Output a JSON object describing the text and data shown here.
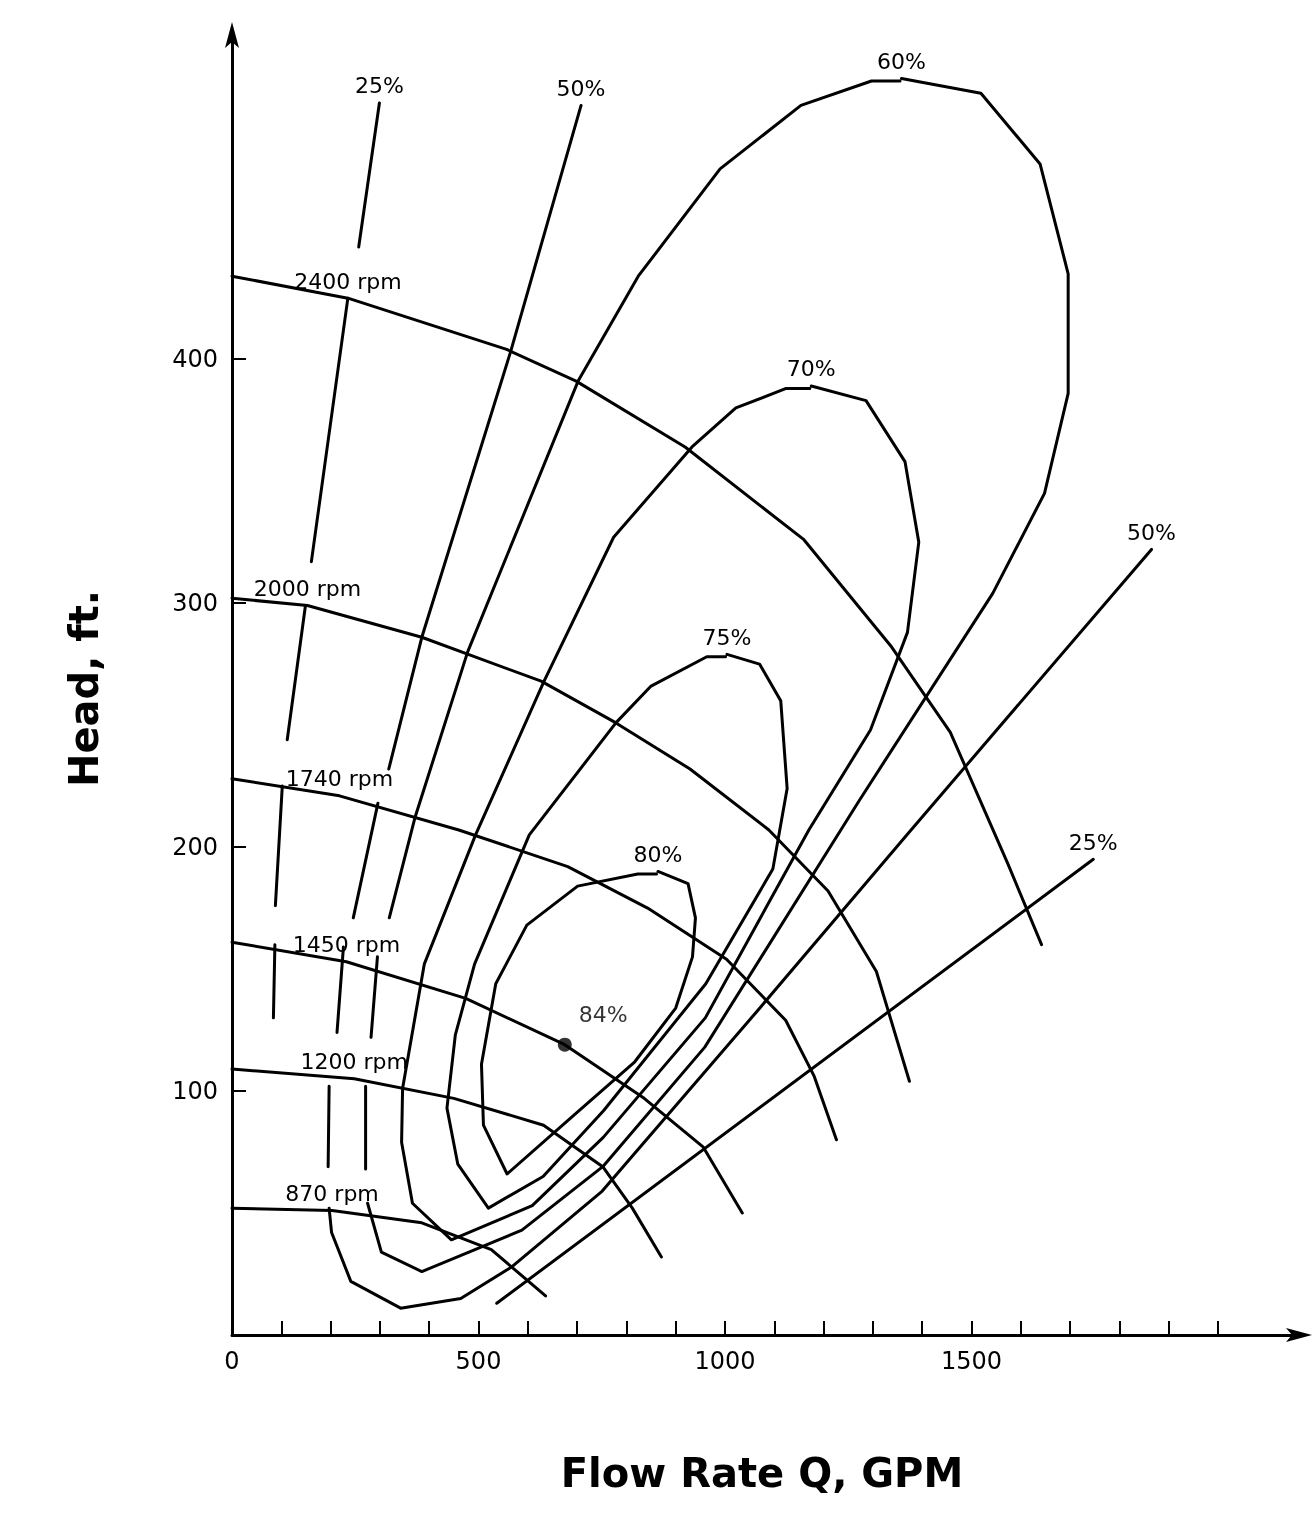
{
  "chart_data": {
    "type": "line",
    "xlabel": "Flow Rate Q, GPM",
    "ylabel": "Head, ft.",
    "xlim": [
      0,
      2150
    ],
    "ylim": [
      0,
      530
    ],
    "xticks": [
      0,
      {
        "value": 100,
        "label": null
      },
      {
        "value": 200,
        "label": null
      },
      {
        "value": 300,
        "label": null
      },
      {
        "value": 400,
        "label": null
      },
      500,
      {
        "value": 600,
        "label": null
      },
      {
        "value": 700,
        "label": null
      },
      {
        "value": 800,
        "label": null
      },
      {
        "value": 900,
        "label": null
      },
      1000,
      {
        "value": 1100,
        "label": null
      },
      {
        "value": 1200,
        "label": null
      },
      {
        "value": 1300,
        "label": null
      },
      {
        "value": 1400,
        "label": null
      },
      1500,
      {
        "value": 1600,
        "label": null
      },
      {
        "value": 1700,
        "label": null
      },
      {
        "value": 1800,
        "label": null
      },
      {
        "value": 1900,
        "label": null
      },
      {
        "value": 2000,
        "label": null
      }
    ],
    "yticks": [
      100,
      200,
      300,
      400
    ],
    "line_style": "solid",
    "series": [
      {
        "name": "2400 rpm",
        "color": "#000000",
        "x": [
          0,
          235,
          557,
          698,
          919,
          1160,
          1338,
          1457,
          1574,
          1642
        ],
        "values": [
          434,
          425,
          404,
          391,
          364,
          326,
          282,
          247,
          193,
          160
        ]
      },
      {
        "name": "2000 rpm",
        "color": "#000000",
        "x": [
          0,
          153,
          385,
          627,
          778,
          929,
          1089,
          1209,
          1307,
          1374
        ],
        "values": [
          302,
          299,
          286,
          268,
          251,
          232,
          207,
          182,
          149,
          104
        ]
      },
      {
        "name": "1740 rpm",
        "color": "#000000",
        "x": [
          0,
          218,
          460,
          681,
          843,
          1003,
          1123,
          1181,
          1226
        ],
        "values": [
          228,
          221,
          207,
          192,
          175,
          154,
          129,
          106,
          80
        ]
      },
      {
        "name": "1450 rpm",
        "color": "#000000",
        "x": [
          0,
          232,
          474,
          675,
          836,
          956,
          1035
        ],
        "values": [
          161,
          153,
          138,
          119,
          97,
          77,
          50
        ]
      },
      {
        "name": "1200 rpm",
        "color": "#000000",
        "x": [
          0,
          248,
          450,
          632,
          752,
          812,
          871
        ],
        "values": [
          109,
          105,
          97,
          86,
          69,
          52,
          32
        ]
      },
      {
        "name": "870 rpm",
        "color": "#000000",
        "x": [
          0,
          203,
          385,
          526,
          636
        ],
        "values": [
          52,
          51,
          46,
          35,
          16
        ]
      },
      {
        "name": "25%",
        "color": "#000000",
        "x": [
          1747,
          537,
          null,
          84,
          87,
          null,
          88,
          102,
          null,
          112,
          149,
          null,
          161,
          235,
          null,
          257,
          299
        ],
        "values": [
          195,
          13,
          null,
          130,
          160,
          null,
          176,
          225,
          null,
          244,
          299,
          null,
          317,
          425,
          null,
          446,
          505
        ]
      },
      {
        "name": "50%",
        "color": "#000000",
        "x": [
          1865,
          1373,
          1062,
          751,
          568,
          464,
          342,
          241,
          202,
          197,
          null,
          195,
          197,
          null,
          213,
          226,
          null,
          246,
          296,
          null,
          318,
          385,
          565,
          708
        ],
        "values": [
          322,
          206,
          132,
          59,
          28,
          15,
          11,
          22,
          42,
          52,
          null,
          69,
          102,
          null,
          124,
          159,
          null,
          171,
          218,
          null,
          232,
          286,
          403,
          504
        ]
      },
      {
        "name": "60%",
        "color": "#000000",
        "x": [
          1358,
          1519,
          1639,
          1696,
          1696,
          1648,
          1543,
          1272,
          959,
          752,
          588,
          385,
          303,
          275,
          null,
          271,
          271,
          null,
          282,
          295,
          null,
          319,
          371,
          478,
          702,
          824,
          990,
          1154,
          1297,
          1355
        ],
        "values": [
          515,
          509,
          480,
          435,
          386,
          345,
          304,
          219,
          118,
          69,
          43,
          26,
          34,
          54,
          null,
          68,
          102,
          null,
          122,
          155,
          null,
          171,
          212,
          280,
          391,
          434,
          478,
          504,
          514,
          514
        ]
      },
      {
        "name": "70%",
        "color": "#000000",
        "x": [
          1175,
          1286,
          1365,
          1393,
          1370,
          1295,
          1170,
          960,
          753,
          609,
          445,
          366,
          344,
          346,
          390,
          494,
          633,
          774,
          933,
          1022,
          1124,
          1172
        ],
        "values": [
          389,
          383,
          358,
          325,
          288,
          248,
          207,
          130,
          81,
          53,
          39,
          54,
          79,
          101,
          152,
          205,
          268,
          327,
          364,
          380,
          388,
          388
        ]
      },
      {
        "name": "75%",
        "color": "#000000",
        "x": [
          1004,
          1070,
          1113,
          1126,
          1097,
          961,
          754,
          631,
          520,
          458,
          436,
          453,
          492,
          603,
          779,
          850,
          963,
          1001
        ],
        "values": [
          279,
          275,
          260,
          224,
          191,
          144,
          92,
          65,
          52,
          70,
          93,
          123,
          152,
          205,
          251,
          266,
          278,
          278
        ]
      },
      {
        "name": "80%",
        "color": "#000000",
        "x": [
          864,
          925,
          940,
          934,
          900,
          817,
          693,
          558,
          510,
          506,
          535,
          598,
          701,
          823,
          861
        ],
        "values": [
          190,
          185,
          171,
          155,
          134,
          112,
          90,
          66,
          86,
          111,
          144,
          168,
          184,
          189,
          189
        ]
      },
      {
        "name": "84%",
        "type": "scatter",
        "marker": "circle",
        "color": "#000000",
        "x": [
          675
        ],
        "values": [
          119
        ]
      }
    ]
  }
}
